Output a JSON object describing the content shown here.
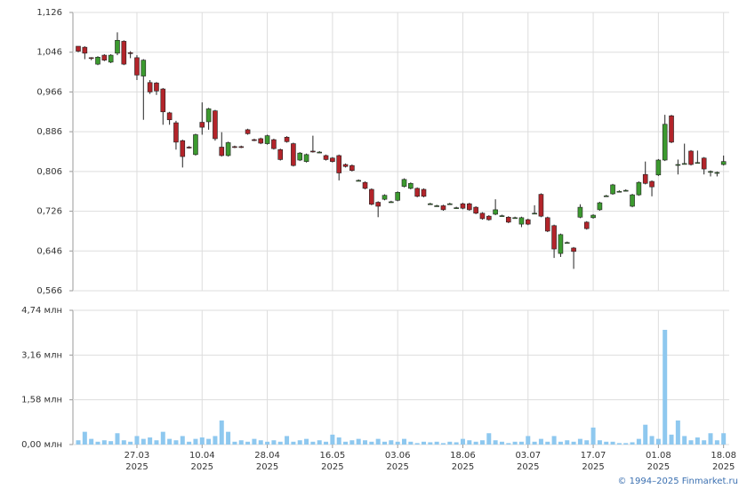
{
  "chart_data": [
    {
      "type": "candlestick",
      "up_color": "#3c9a2f",
      "down_color": "#b3242a",
      "grid": true,
      "ylim": [
        0.566,
        1.126
      ],
      "yticks": [
        {
          "value": 0.566,
          "label": "0,566"
        },
        {
          "value": 0.646,
          "label": "0,646"
        },
        {
          "value": 0.726,
          "label": "0,726"
        },
        {
          "value": 0.806,
          "label": "0,806"
        },
        {
          "value": 0.886,
          "label": "0,886"
        },
        {
          "value": 0.966,
          "label": "0,966"
        },
        {
          "value": 1.046,
          "label": "1,046"
        },
        {
          "value": 1.126,
          "label": "1,126"
        }
      ],
      "open": [
        1.058,
        1.056,
        1.035,
        1.022,
        1.04,
        1.026,
        1.044,
        1.068,
        1.045,
        1.035,
        0.998,
        0.985,
        0.984,
        0.972,
        0.924,
        0.904,
        0.868,
        0.855,
        0.84,
        0.905,
        0.906,
        0.928,
        0.855,
        0.838,
        0.856,
        0.856,
        0.89,
        0.87,
        0.872,
        0.862,
        0.87,
        0.85,
        0.875,
        0.862,
        0.829,
        0.826,
        0.847,
        0.845,
        0.838,
        0.833,
        0.838,
        0.82,
        0.818,
        0.788,
        0.784,
        0.77,
        0.744,
        0.75,
        0.745,
        0.748,
        0.776,
        0.772,
        0.772,
        0.77,
        0.741,
        0.737,
        0.737,
        0.741,
        0.733,
        0.741,
        0.741,
        0.734,
        0.722,
        0.716,
        0.72,
        0.717,
        0.714,
        0.713,
        0.7,
        0.709,
        0.722,
        0.76,
        0.713,
        0.697,
        0.641,
        0.663,
        0.652,
        0.714,
        0.704,
        0.713,
        0.729,
        0.757,
        0.761,
        0.766,
        0.768,
        0.736,
        0.759,
        0.8,
        0.786,
        0.799,
        0.829,
        0.918,
        0.82,
        0.822,
        0.847,
        0.824,
        0.833,
        0.806,
        0.804,
        0.82
      ],
      "high": [
        1.058,
        1.058,
        1.036,
        1.038,
        1.042,
        1.042,
        1.086,
        1.07,
        1.048,
        1.04,
        1.032,
        0.99,
        0.986,
        0.974,
        0.926,
        0.908,
        0.87,
        0.857,
        0.882,
        0.945,
        0.934,
        0.93,
        0.885,
        0.866,
        0.858,
        0.858,
        0.892,
        0.872,
        0.874,
        0.88,
        0.872,
        0.852,
        0.877,
        0.864,
        0.845,
        0.842,
        0.878,
        0.847,
        0.84,
        0.835,
        0.84,
        0.822,
        0.82,
        0.79,
        0.786,
        0.772,
        0.746,
        0.76,
        0.747,
        0.766,
        0.792,
        0.784,
        0.774,
        0.772,
        0.743,
        0.739,
        0.739,
        0.743,
        0.735,
        0.743,
        0.743,
        0.736,
        0.724,
        0.718,
        0.75,
        0.719,
        0.716,
        0.715,
        0.715,
        0.711,
        0.738,
        0.762,
        0.715,
        0.699,
        0.681,
        0.665,
        0.654,
        0.74,
        0.706,
        0.72,
        0.745,
        0.759,
        0.781,
        0.768,
        0.77,
        0.761,
        0.786,
        0.826,
        0.788,
        0.831,
        0.92,
        0.92,
        0.83,
        0.862,
        0.849,
        0.848,
        0.835,
        0.808,
        0.806,
        0.838
      ],
      "low": [
        1.046,
        1.032,
        1.03,
        1.02,
        1.028,
        1.024,
        1.04,
        1.02,
        1.034,
        0.99,
        0.91,
        0.962,
        0.96,
        0.9,
        0.9,
        0.85,
        0.814,
        0.852,
        0.838,
        0.88,
        0.89,
        0.868,
        0.836,
        0.836,
        0.853,
        0.853,
        0.88,
        0.867,
        0.861,
        0.86,
        0.85,
        0.828,
        0.864,
        0.816,
        0.827,
        0.824,
        0.844,
        0.843,
        0.828,
        0.824,
        0.788,
        0.814,
        0.806,
        0.786,
        0.77,
        0.738,
        0.714,
        0.748,
        0.743,
        0.746,
        0.774,
        0.77,
        0.754,
        0.754,
        0.739,
        0.735,
        0.727,
        0.739,
        0.731,
        0.73,
        0.727,
        0.72,
        0.709,
        0.707,
        0.718,
        0.715,
        0.702,
        0.711,
        0.694,
        0.698,
        0.72,
        0.714,
        0.684,
        0.632,
        0.634,
        0.661,
        0.61,
        0.712,
        0.689,
        0.711,
        0.727,
        0.755,
        0.759,
        0.764,
        0.766,
        0.734,
        0.757,
        0.78,
        0.756,
        0.797,
        0.827,
        0.863,
        0.8,
        0.82,
        0.818,
        0.822,
        0.8,
        0.796,
        0.796,
        0.818
      ],
      "close": [
        1.048,
        1.044,
        1.034,
        1.036,
        1.03,
        1.04,
        1.07,
        1.022,
        1.044,
        1.0,
        1.03,
        0.966,
        0.968,
        0.926,
        0.91,
        0.865,
        0.836,
        0.854,
        0.88,
        0.895,
        0.932,
        0.872,
        0.838,
        0.864,
        0.855,
        0.855,
        0.882,
        0.869,
        0.863,
        0.878,
        0.852,
        0.83,
        0.866,
        0.818,
        0.843,
        0.84,
        0.846,
        0.845,
        0.83,
        0.826,
        0.803,
        0.816,
        0.808,
        0.788,
        0.772,
        0.74,
        0.736,
        0.758,
        0.745,
        0.764,
        0.79,
        0.782,
        0.756,
        0.756,
        0.741,
        0.737,
        0.729,
        0.741,
        0.733,
        0.732,
        0.729,
        0.722,
        0.711,
        0.709,
        0.729,
        0.717,
        0.704,
        0.713,
        0.713,
        0.7,
        0.722,
        0.716,
        0.686,
        0.65,
        0.679,
        0.663,
        0.645,
        0.734,
        0.691,
        0.718,
        0.743,
        0.757,
        0.779,
        0.766,
        0.768,
        0.759,
        0.784,
        0.782,
        0.775,
        0.829,
        0.901,
        0.865,
        0.82,
        0.822,
        0.82,
        0.824,
        0.811,
        0.806,
        0.804,
        0.826
      ]
    },
    {
      "type": "bar",
      "color": "#8ec8ef",
      "grid": true,
      "ylim": [
        0,
        4.74
      ],
      "yticks": [
        {
          "value": 0,
          "label": "0,00 млн"
        },
        {
          "value": 1.58,
          "label": "1,58 млн"
        },
        {
          "value": 3.16,
          "label": "3,16 млн"
        },
        {
          "value": 4.74,
          "label": "4,74 млн"
        }
      ],
      "categories": [
        null,
        null,
        null,
        null,
        null,
        null,
        null,
        null,
        null,
        [
          "27.03",
          "2025"
        ],
        null,
        null,
        null,
        null,
        null,
        null,
        null,
        null,
        null,
        [
          "10.04",
          "2025"
        ],
        null,
        null,
        null,
        null,
        null,
        null,
        null,
        null,
        null,
        [
          "28.04",
          "2025"
        ],
        null,
        null,
        null,
        null,
        null,
        null,
        null,
        null,
        null,
        [
          "16.05",
          "2025"
        ],
        null,
        null,
        null,
        null,
        null,
        null,
        null,
        null,
        null,
        [
          "03.06",
          "2025"
        ],
        null,
        null,
        null,
        null,
        null,
        null,
        null,
        null,
        null,
        [
          "18.06",
          "2025"
        ],
        null,
        null,
        null,
        null,
        null,
        null,
        null,
        null,
        null,
        [
          "03.07",
          "2025"
        ],
        null,
        null,
        null,
        null,
        null,
        null,
        null,
        null,
        null,
        [
          "17.07",
          "2025"
        ],
        null,
        null,
        null,
        null,
        null,
        null,
        null,
        null,
        null,
        [
          "01.08",
          "2025"
        ],
        null,
        null,
        null,
        null,
        null,
        null,
        null,
        null,
        null,
        [
          "18.08",
          "2025"
        ]
      ],
      "values": [
        0.15,
        0.45,
        0.2,
        0.1,
        0.15,
        0.12,
        0.4,
        0.15,
        0.1,
        0.3,
        0.2,
        0.25,
        0.15,
        0.45,
        0.2,
        0.15,
        0.3,
        0.1,
        0.2,
        0.25,
        0.2,
        0.3,
        0.85,
        0.45,
        0.1,
        0.15,
        0.1,
        0.2,
        0.15,
        0.1,
        0.15,
        0.1,
        0.3,
        0.1,
        0.15,
        0.2,
        0.1,
        0.15,
        0.1,
        0.35,
        0.25,
        0.1,
        0.15,
        0.2,
        0.15,
        0.1,
        0.2,
        0.1,
        0.15,
        0.1,
        0.2,
        0.1,
        0.05,
        0.1,
        0.08,
        0.1,
        0.05,
        0.1,
        0.08,
        0.2,
        0.15,
        0.1,
        0.15,
        0.4,
        0.15,
        0.1,
        0.05,
        0.1,
        0.1,
        0.3,
        0.1,
        0.2,
        0.1,
        0.3,
        0.1,
        0.15,
        0.1,
        0.2,
        0.15,
        0.6,
        0.15,
        0.1,
        0.1,
        0.05,
        0.05,
        0.08,
        0.2,
        0.7,
        0.3,
        0.2,
        4.05,
        0.35,
        0.85,
        0.3,
        0.15,
        0.25,
        0.15,
        0.4,
        0.15,
        0.4
      ]
    }
  ],
  "credit": "© 1994–2025 Finmarket.ru"
}
